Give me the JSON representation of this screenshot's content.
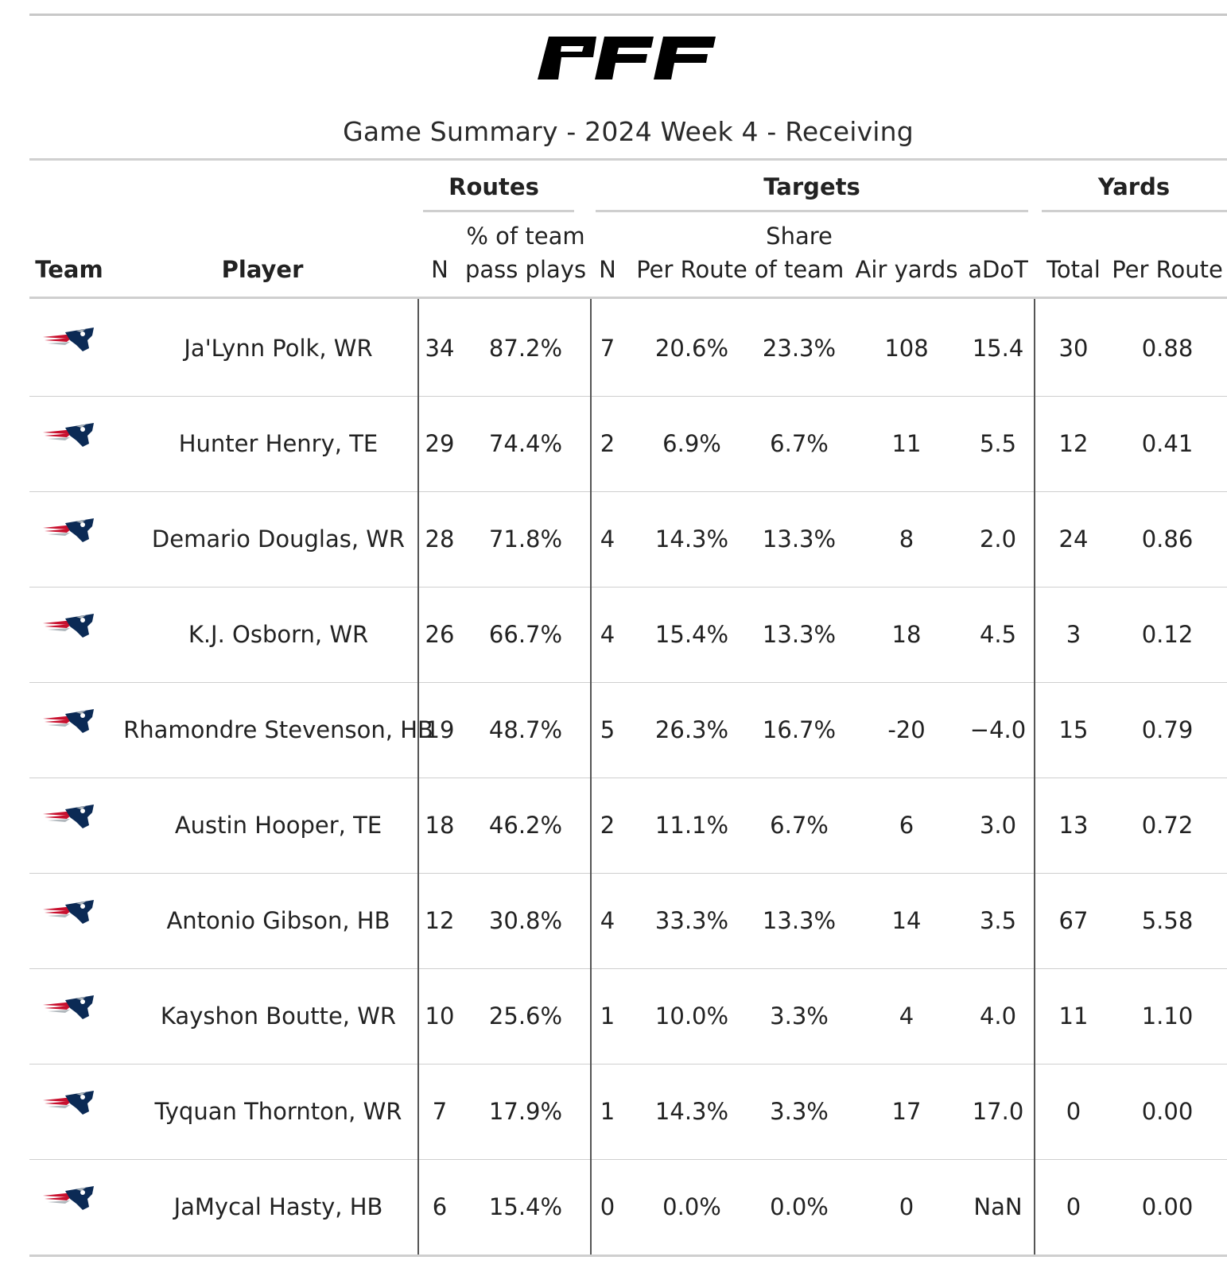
{
  "header": {
    "logo_text": "PFF",
    "title": "Game Summary - 2024 Week 4 - Receiving"
  },
  "spanners": {
    "routes": "Routes",
    "targets": "Targets",
    "yards": "Yards"
  },
  "columns": {
    "team": "Team",
    "player": "Player",
    "routes_n": "N",
    "routes_pct_line1": "% of team",
    "routes_pct_line2": "pass plays",
    "targets_n": "N",
    "targets_per_route": "Per Route",
    "targets_share_line1": "Share",
    "targets_share_line2": "of team",
    "air_yards": "Air yards",
    "adot": "aDoT",
    "yards_total": "Total",
    "yards_per_route": "Per Route"
  },
  "team_logo": "patriots-logo-icon",
  "colors": {
    "navy": "#0b2a55",
    "red": "#c8102e",
    "silver": "#b0b7bc"
  },
  "rows": [
    {
      "player": "Ja'Lynn Polk, WR",
      "routes_n": "34",
      "routes_pct": "87.2%",
      "targets_n": "7",
      "targets_per_route": "20.6%",
      "targets_share": "23.3%",
      "air_yards": "108",
      "adot": "15.4",
      "yards_total": "30",
      "yards_per_route": "0.88"
    },
    {
      "player": "Hunter Henry, TE",
      "routes_n": "29",
      "routes_pct": "74.4%",
      "targets_n": "2",
      "targets_per_route": "6.9%",
      "targets_share": "6.7%",
      "air_yards": "11",
      "adot": "5.5",
      "yards_total": "12",
      "yards_per_route": "0.41"
    },
    {
      "player": "Demario Douglas, WR",
      "routes_n": "28",
      "routes_pct": "71.8%",
      "targets_n": "4",
      "targets_per_route": "14.3%",
      "targets_share": "13.3%",
      "air_yards": "8",
      "adot": "2.0",
      "yards_total": "24",
      "yards_per_route": "0.86"
    },
    {
      "player": "K.J. Osborn, WR",
      "routes_n": "26",
      "routes_pct": "66.7%",
      "targets_n": "4",
      "targets_per_route": "15.4%",
      "targets_share": "13.3%",
      "air_yards": "18",
      "adot": "4.5",
      "yards_total": "3",
      "yards_per_route": "0.12"
    },
    {
      "player": "Rhamondre Stevenson, HB",
      "routes_n": "19",
      "routes_pct": "48.7%",
      "targets_n": "5",
      "targets_per_route": "26.3%",
      "targets_share": "16.7%",
      "air_yards": "-20",
      "adot": "−4.0",
      "yards_total": "15",
      "yards_per_route": "0.79"
    },
    {
      "player": "Austin Hooper, TE",
      "routes_n": "18",
      "routes_pct": "46.2%",
      "targets_n": "2",
      "targets_per_route": "11.1%",
      "targets_share": "6.7%",
      "air_yards": "6",
      "adot": "3.0",
      "yards_total": "13",
      "yards_per_route": "0.72"
    },
    {
      "player": "Antonio Gibson, HB",
      "routes_n": "12",
      "routes_pct": "30.8%",
      "targets_n": "4",
      "targets_per_route": "33.3%",
      "targets_share": "13.3%",
      "air_yards": "14",
      "adot": "3.5",
      "yards_total": "67",
      "yards_per_route": "5.58"
    },
    {
      "player": "Kayshon Boutte, WR",
      "routes_n": "10",
      "routes_pct": "25.6%",
      "targets_n": "1",
      "targets_per_route": "10.0%",
      "targets_share": "3.3%",
      "air_yards": "4",
      "adot": "4.0",
      "yards_total": "11",
      "yards_per_route": "1.10"
    },
    {
      "player": "Tyquan Thornton, WR",
      "routes_n": "7",
      "routes_pct": "17.9%",
      "targets_n": "1",
      "targets_per_route": "14.3%",
      "targets_share": "3.3%",
      "air_yards": "17",
      "adot": "17.0",
      "yards_total": "0",
      "yards_per_route": "0.00"
    },
    {
      "player": "JaMycal Hasty, HB",
      "routes_n": "6",
      "routes_pct": "15.4%",
      "targets_n": "0",
      "targets_per_route": "0.0%",
      "targets_share": "0.0%",
      "air_yards": "0",
      "adot": "NaN",
      "yards_total": "0",
      "yards_per_route": "0.00"
    }
  ]
}
